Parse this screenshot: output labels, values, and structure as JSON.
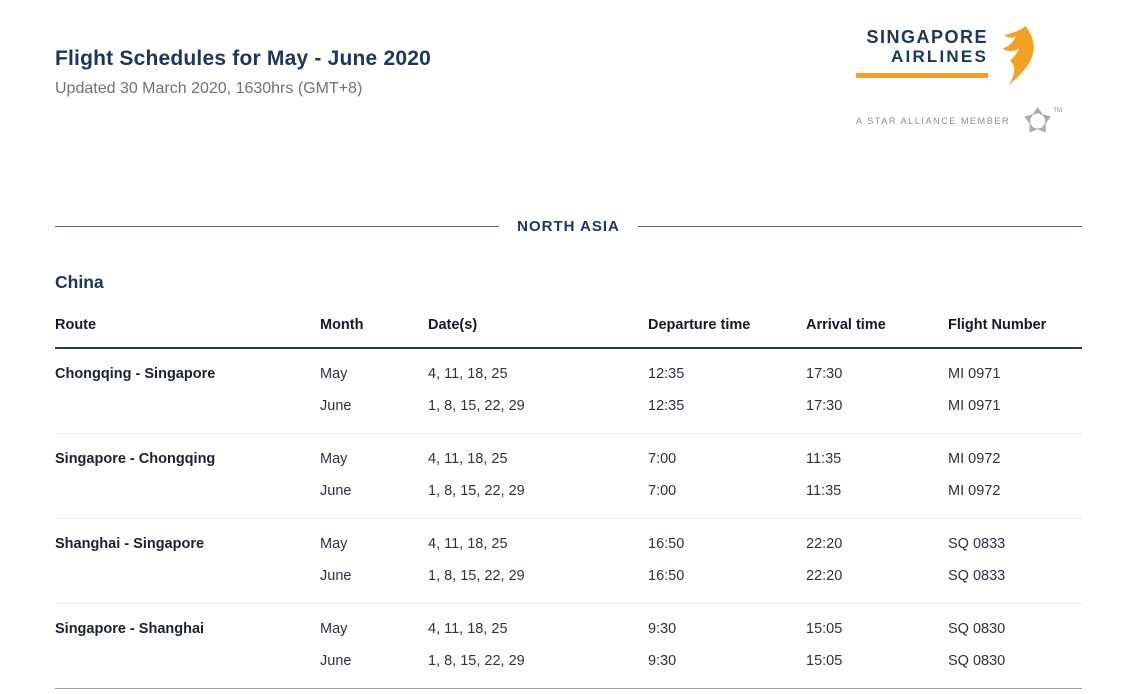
{
  "page": {
    "title": "Flight Schedules for May - June 2020",
    "updated": "Updated 30 March 2020, 1630hrs (GMT+8)"
  },
  "logo": {
    "line1": "SINGAPORE",
    "line2": "AIRLINES",
    "star_alliance": "A STAR ALLIANCE MEMBER",
    "tm": "TM"
  },
  "colors": {
    "brand_navy": "#1d3564",
    "brand_orange": "#f4a024",
    "divider_gray": "#ececec",
    "bottom_rule": "#92a6b6",
    "subtitle_gray": "#6e7276"
  },
  "section": {
    "label": "NORTH ASIA"
  },
  "country": {
    "name": "China"
  },
  "table": {
    "headers": [
      "Route",
      "Month",
      "Date(s)",
      "Departure time",
      "Arrival time",
      "Flight Number"
    ],
    "groups": [
      {
        "route": "Chongqing - Singapore",
        "rows": [
          {
            "month": "May",
            "dates": "4, 11, 18, 25",
            "departure": "12:35",
            "arrival": "17:30",
            "flight": "MI 0971"
          },
          {
            "month": "June",
            "dates": "1, 8, 15, 22, 29",
            "departure": "12:35",
            "arrival": "17:30",
            "flight": "MI 0971"
          }
        ]
      },
      {
        "route": "Singapore - Chongqing",
        "rows": [
          {
            "month": "May",
            "dates": "4, 11, 18, 25",
            "departure": "7:00",
            "arrival": "11:35",
            "flight": "MI 0972"
          },
          {
            "month": "June",
            "dates": "1, 8, 15, 22, 29",
            "departure": "7:00",
            "arrival": "11:35",
            "flight": "MI 0972"
          }
        ]
      },
      {
        "route": "Shanghai - Singapore",
        "rows": [
          {
            "month": "May",
            "dates": "4, 11, 18, 25",
            "departure": "16:50",
            "arrival": "22:20",
            "flight": "SQ 0833"
          },
          {
            "month": "June",
            "dates": "1, 8, 15, 22, 29",
            "departure": "16:50",
            "arrival": "22:20",
            "flight": "SQ 0833"
          }
        ]
      },
      {
        "route": "Singapore - Shanghai",
        "rows": [
          {
            "month": "May",
            "dates": "4, 11, 18, 25",
            "departure": "9:30",
            "arrival": "15:05",
            "flight": "SQ 0830"
          },
          {
            "month": "June",
            "dates": "1, 8, 15, 22, 29",
            "departure": "9:30",
            "arrival": "15:05",
            "flight": "SQ 0830"
          }
        ]
      }
    ]
  }
}
